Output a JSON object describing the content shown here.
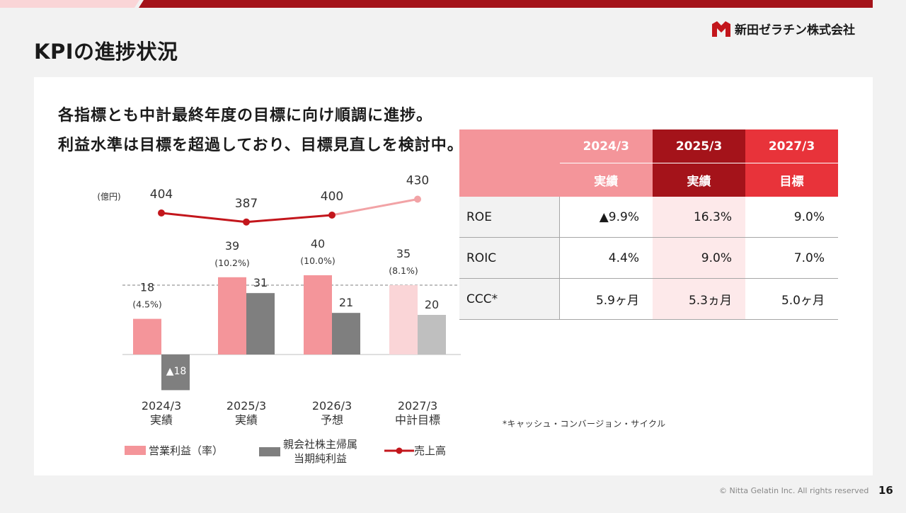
{
  "slide": {
    "title": "KPIの進捗状況",
    "headline_1": "各指標とも中計最終年度の目標に向け順調に進捗。",
    "headline_2": "利益水準は目標を超過しており、目標見直しを検討中。",
    "company": "新田ゼラチン株式会社",
    "copyright": "© Nitta Gelatin Inc. All rights reserved",
    "page": "16",
    "footnote": "*キャッシュ・コンバージョン・サイクル"
  },
  "colors": {
    "brand_red": "#c3161c",
    "op_profit": "#f4959a",
    "op_profit_target": "#fad5d7",
    "net_profit": "#7f7f7f",
    "net_profit_target": "#bfbfbf",
    "sales_line": "#c3161c",
    "sales_line_target": "#f2a3a6",
    "th_2024": "#f4959a",
    "th_2025": "#a4131a",
    "th_2027": "#e8333a",
    "row_label_bg": "#f2f2f2",
    "col_2025_bg": "#fde9ea"
  },
  "chart_data": {
    "type": "bar",
    "unit_label": "(億円)",
    "categories": [
      {
        "year": "2024/3",
        "status": "実績"
      },
      {
        "year": "2025/3",
        "status": "実績"
      },
      {
        "year": "2026/3",
        "status": "予想"
      },
      {
        "year": "2027/3",
        "status": "中計目標"
      }
    ],
    "series": [
      {
        "name": "営業利益（率）",
        "values": [
          18,
          39,
          40,
          35
        ],
        "labels": [
          "18",
          "39",
          "40",
          "35"
        ],
        "rate_labels": [
          "(4.5%)",
          "(10.2%)",
          "(10.0%)",
          "(8.1%)"
        ]
      },
      {
        "name": "親会社株主帰属 当期純利益",
        "values": [
          -18,
          31,
          21,
          20
        ],
        "labels": [
          "▲18",
          "31",
          "21",
          "20"
        ]
      },
      {
        "name": "売上高",
        "type": "line",
        "values": [
          404,
          387,
          400,
          430
        ],
        "labels": [
          "404",
          "387",
          "400",
          "430"
        ]
      }
    ],
    "reference_line": 35,
    "legend": [
      {
        "label": "営業利益（率）"
      },
      {
        "label": "親会社株主帰属",
        "label2": "当期純利益"
      },
      {
        "label": "売上高"
      }
    ]
  },
  "kpi_table": {
    "headers": [
      {
        "year": "2024/3",
        "status": "実績"
      },
      {
        "year": "2025/3",
        "status": "実績"
      },
      {
        "year": "2027/3",
        "status": "目標"
      }
    ],
    "rows": [
      {
        "label": "ROE",
        "v1": "▲9.9%",
        "v2": "16.3%",
        "v3": "9.0%"
      },
      {
        "label": "ROIC",
        "v1": "4.4%",
        "v2": "9.0%",
        "v3": "7.0%"
      },
      {
        "label": "CCC*",
        "v1": "5.9ヶ月",
        "v2": "5.3ヵ月",
        "v3": "5.0ヶ月"
      }
    ]
  }
}
